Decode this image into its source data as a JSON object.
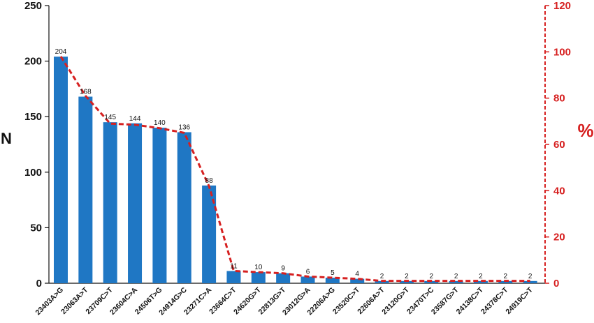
{
  "chart_data": {
    "type": "bar",
    "categories": [
      "23403A>G",
      "23063A>T",
      "23709C>T",
      "23604C>A",
      "24506T>G",
      "24914G>C",
      "23271C>A",
      "23664C>T",
      "24620G>T",
      "22813G>T",
      "23012G>A",
      "22206A>G",
      "23520C>T",
      "22606A>T",
      "23120G>T",
      "23470T>C",
      "23587G>T",
      "24138C>T",
      "24378C>T",
      "24919C>T"
    ],
    "values": [
      204,
      168,
      145,
      144,
      140,
      136,
      88,
      11,
      10,
      9,
      6,
      5,
      4,
      2,
      2,
      2,
      2,
      2,
      2,
      2
    ],
    "data_labels": [
      "204",
      "168",
      "145",
      "144",
      "140",
      "136",
      "88",
      "11",
      "10",
      "9",
      "6",
      "5",
      "4",
      "2",
      "2",
      "2",
      "2",
      "2",
      "2",
      "2"
    ],
    "percent_series": {
      "values": [
        98,
        81,
        69,
        68.5,
        67,
        65,
        42,
        5.3,
        4.8,
        4.3,
        2.9,
        2.4,
        1.9,
        1,
        1,
        1,
        1,
        1,
        1,
        1
      ]
    },
    "ylabel": "N",
    "y2label": "%",
    "ylim": [
      0,
      250
    ],
    "y2lim": [
      0,
      120
    ],
    "yticks": [
      "0",
      "50",
      "100",
      "150",
      "200",
      "250"
    ],
    "y2ticks": [
      "0",
      "20",
      "40",
      "60",
      "80",
      "100",
      "120"
    ],
    "grid": false,
    "colors": {
      "bars": "#1f77c4",
      "percent_line": "#d62020",
      "left_axis": "#111111",
      "right_axis": "#d62020"
    }
  }
}
